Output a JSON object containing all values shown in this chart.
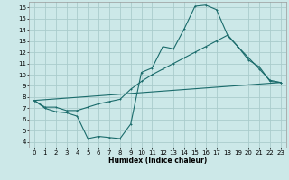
{
  "xlabel": "Humidex (Indice chaleur)",
  "ylabel": "",
  "background_color": "#cce8e8",
  "grid_color": "#aacccc",
  "line_color": "#1a6b6b",
  "xlim": [
    -0.5,
    23.5
  ],
  "ylim": [
    3.5,
    16.5
  ],
  "xticks": [
    0,
    1,
    2,
    3,
    4,
    5,
    6,
    7,
    8,
    9,
    10,
    11,
    12,
    13,
    14,
    15,
    16,
    17,
    18,
    19,
    20,
    21,
    22,
    23
  ],
  "yticks": [
    4,
    5,
    6,
    7,
    8,
    9,
    10,
    11,
    12,
    13,
    14,
    15,
    16
  ],
  "line1_x": [
    0,
    1,
    2,
    3,
    4,
    5,
    6,
    7,
    8,
    9,
    10,
    11,
    12,
    13,
    14,
    15,
    16,
    17,
    18,
    19,
    20,
    21,
    22,
    23
  ],
  "line1_y": [
    7.7,
    7.0,
    6.7,
    6.6,
    6.3,
    4.3,
    4.5,
    4.4,
    4.3,
    5.6,
    10.2,
    10.6,
    12.5,
    12.3,
    14.1,
    16.1,
    16.2,
    15.8,
    13.6,
    12.5,
    11.3,
    10.7,
    9.4,
    9.3
  ],
  "line2_x": [
    0,
    1,
    2,
    3,
    4,
    5,
    6,
    7,
    8,
    9,
    10,
    11,
    12,
    13,
    14,
    15,
    16,
    17,
    18,
    19,
    20,
    21,
    22,
    23
  ],
  "line2_y": [
    7.7,
    7.1,
    7.1,
    6.8,
    6.8,
    7.1,
    7.4,
    7.6,
    7.8,
    8.7,
    9.4,
    10.0,
    10.5,
    11.0,
    11.5,
    12.0,
    12.5,
    13.0,
    13.5,
    12.5,
    11.5,
    10.5,
    9.5,
    9.3
  ],
  "line3_x": [
    0,
    23
  ],
  "line3_y": [
    7.7,
    9.3
  ],
  "tick_fontsize": 5.0,
  "xlabel_fontsize": 5.5
}
